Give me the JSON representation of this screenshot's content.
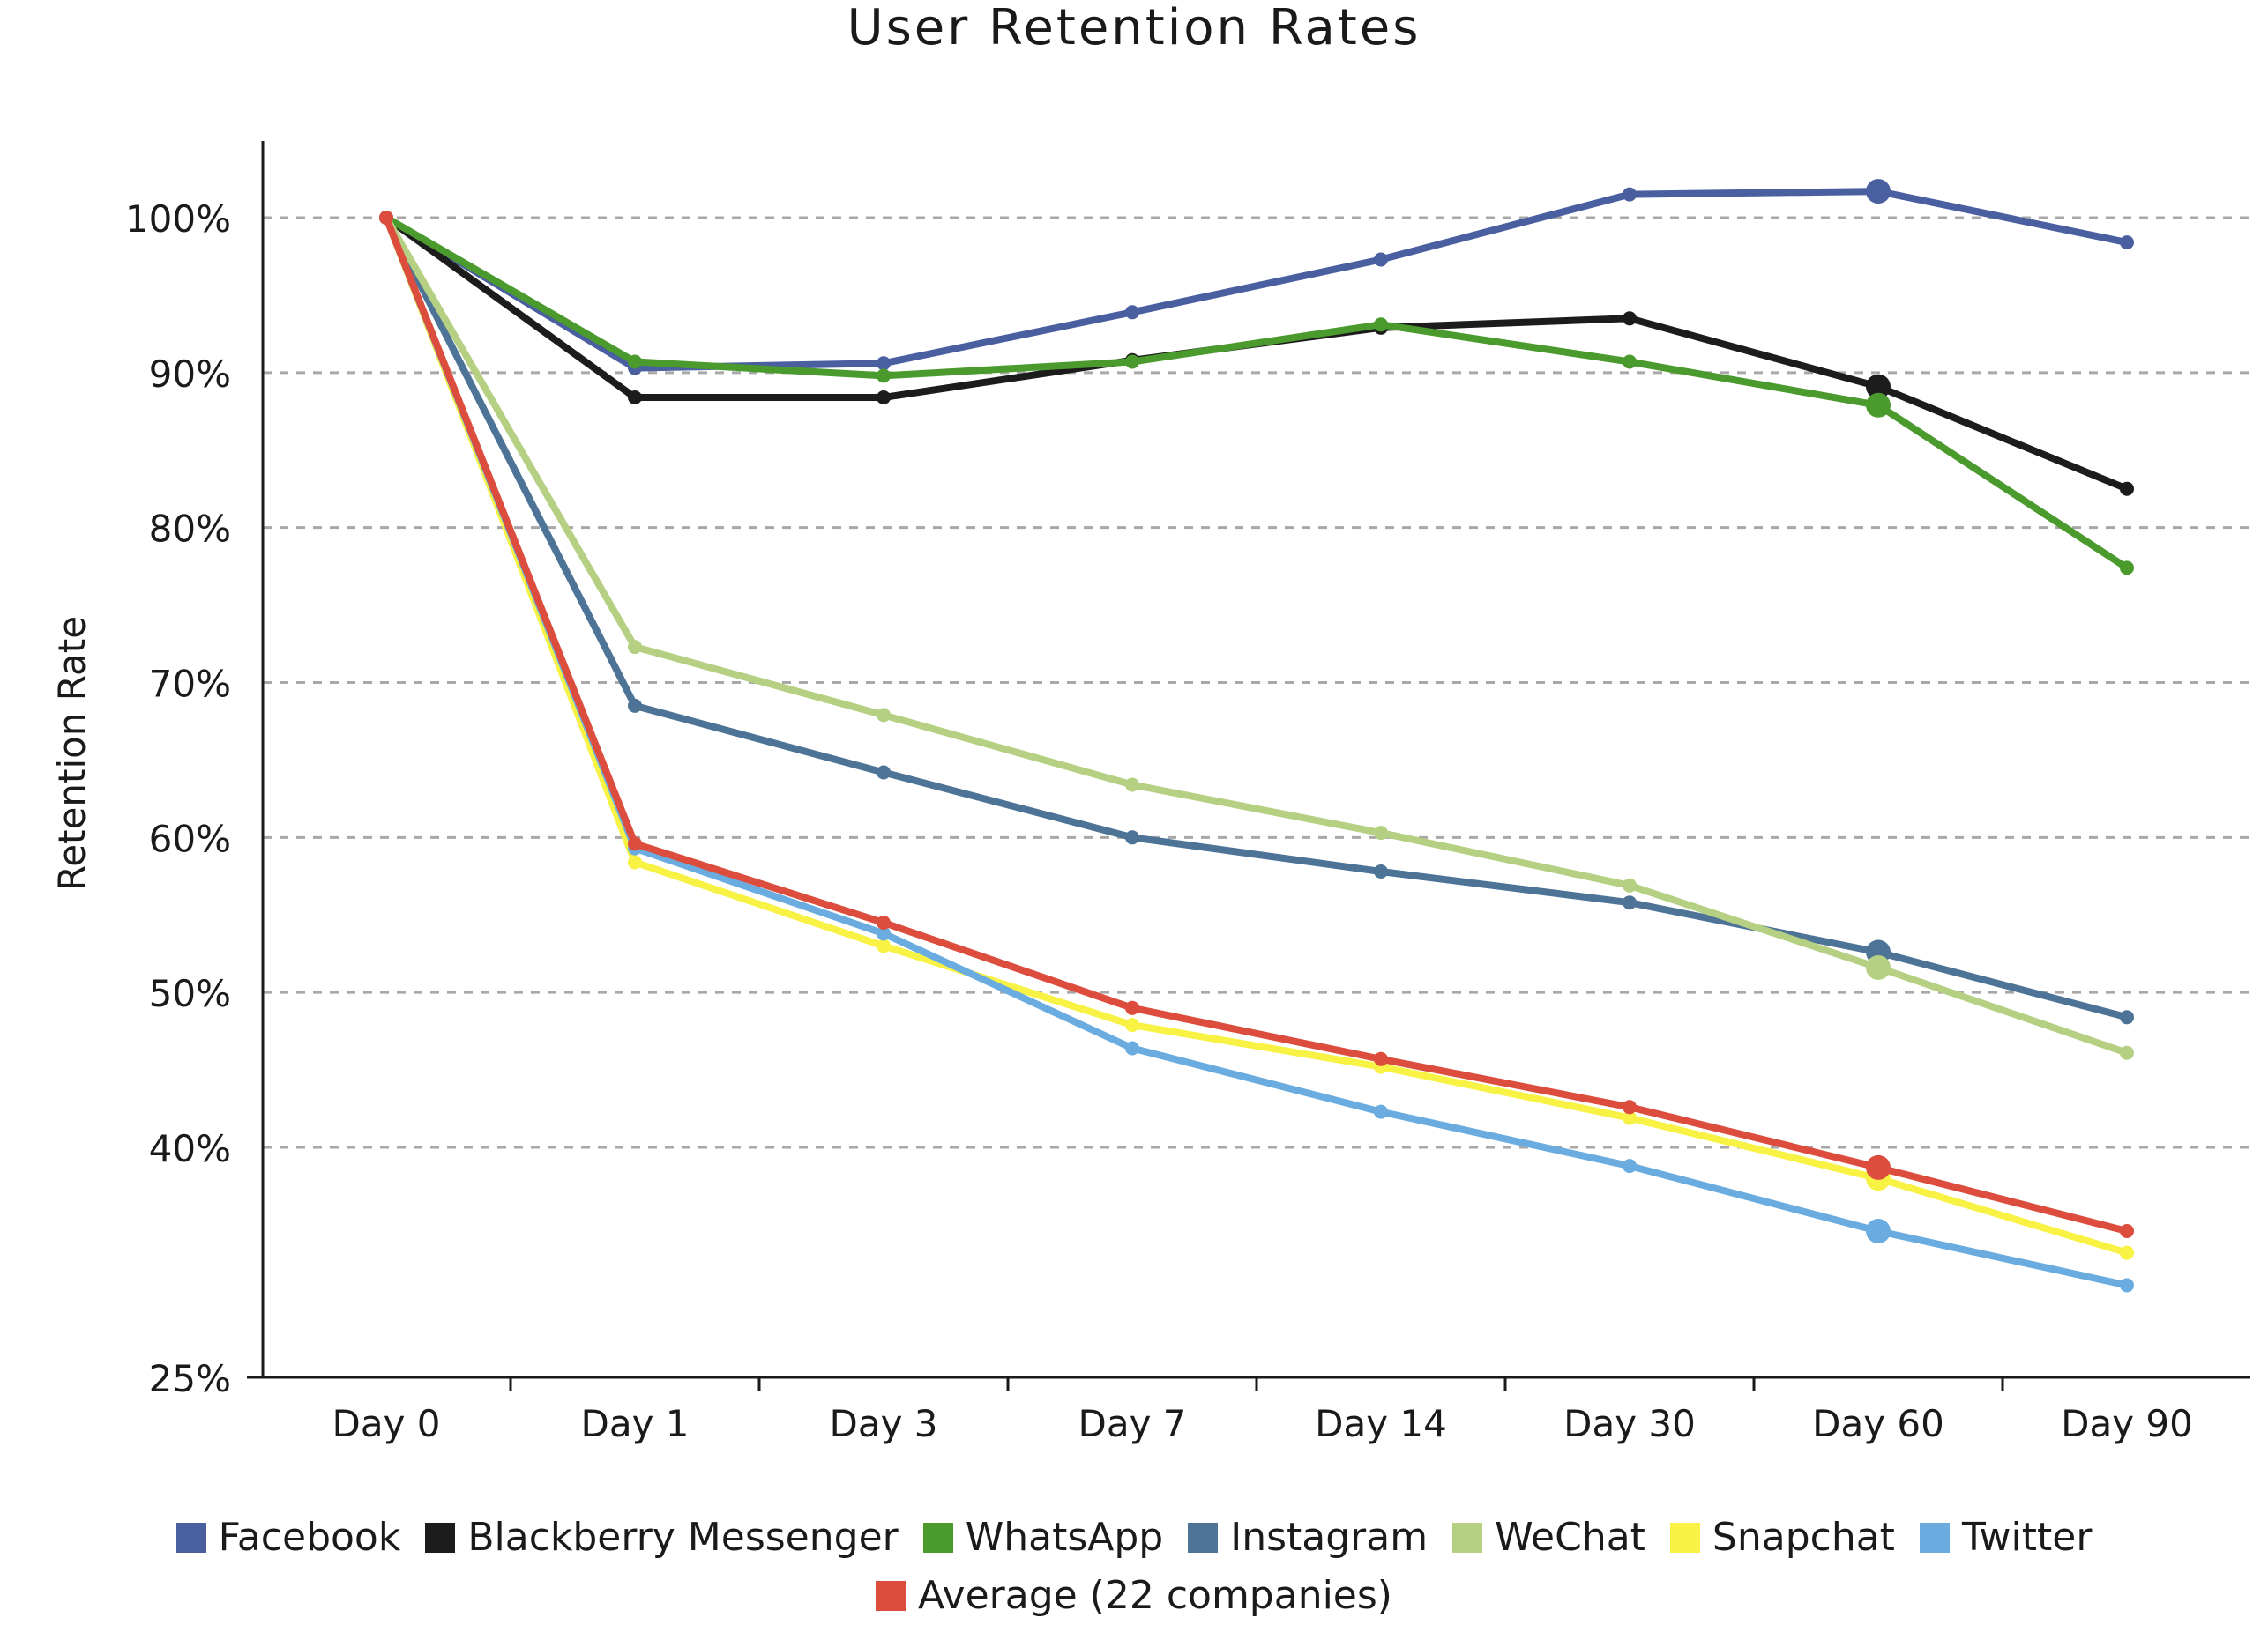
{
  "chart_data": {
    "type": "line",
    "title": "User Retention Rates",
    "xlabel": "",
    "ylabel": "Retention Rate",
    "categories": [
      "Day 0",
      "Day 1",
      "Day 3",
      "Day 7",
      "Day 14",
      "Day 30",
      "Day 60",
      "Day 90"
    ],
    "y_ticks": [
      {
        "value": 100,
        "label": "100%"
      },
      {
        "value": 90,
        "label": "90%"
      },
      {
        "value": 80,
        "label": "80%"
      },
      {
        "value": 70,
        "label": "70%"
      },
      {
        "value": 60,
        "label": "60%"
      },
      {
        "value": 50,
        "label": "50%"
      },
      {
        "value": 40,
        "label": "40%"
      },
      {
        "value": 25,
        "label": "25%"
      }
    ],
    "ylim": [
      25,
      105
    ],
    "grid": "horizontal dashed",
    "legend_position": "bottom",
    "highlighted_category": "Day 60",
    "series": [
      {
        "name": "Facebook",
        "color": "#4a5fa0",
        "values": [
          100,
          90.3,
          90.6,
          93.9,
          97.3,
          101.5,
          101.7,
          98.4
        ]
      },
      {
        "name": "Blackberry Messenger",
        "color": "#1c1c1c",
        "values": [
          100,
          88.4,
          88.4,
          90.8,
          92.9,
          93.5,
          89.1,
          82.5
        ]
      },
      {
        "name": "WhatsApp",
        "color": "#4a9a2e",
        "values": [
          100,
          90.7,
          89.8,
          90.7,
          93.1,
          90.7,
          87.9,
          77.4
        ]
      },
      {
        "name": "Instagram",
        "color": "#4d7396",
        "values": [
          100,
          68.5,
          64.2,
          60.0,
          57.8,
          55.8,
          52.6,
          48.4
        ]
      },
      {
        "name": "WeChat",
        "color": "#b5d083",
        "values": [
          100,
          72.3,
          67.9,
          63.4,
          60.3,
          56.9,
          51.6,
          46.1
        ]
      },
      {
        "name": "Snapchat",
        "color": "#f7f244",
        "values": [
          100,
          58.4,
          53.0,
          47.9,
          45.2,
          41.9,
          38.0,
          33.2
        ]
      },
      {
        "name": "Twitter",
        "color": "#6aacdf",
        "values": [
          100,
          59.3,
          53.8,
          46.4,
          42.3,
          38.8,
          34.6,
          31.1
        ]
      },
      {
        "name": "Average (22 companies)",
        "color": "#dc4d3e",
        "values": [
          100,
          59.6,
          54.5,
          49.0,
          45.7,
          42.6,
          38.7,
          34.6
        ]
      }
    ]
  }
}
